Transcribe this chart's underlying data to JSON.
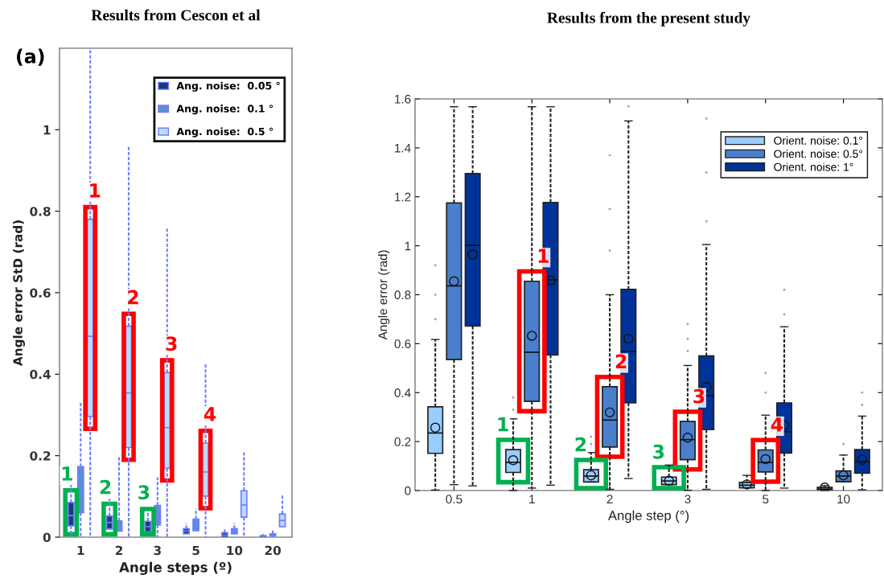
{
  "chart_data": [
    {
      "type": "box",
      "title": "Results from Cescon et al",
      "xlabel": "Angle steps (º)",
      "ylabel": "Angle error StD (rad)",
      "categories": [
        "1",
        "2",
        "3",
        "5",
        "10",
        "20"
      ],
      "ylim": [
        0,
        1.2
      ],
      "yticks": [
        0,
        0.2,
        0.4,
        0.6,
        0.8,
        1
      ],
      "legend": "top right",
      "series": [
        {
          "name": "Ang. noise:  0.05 °",
          "color": "#1b3a7a",
          "boxes": [
            {
              "low": 0,
              "q1": 0.028,
              "median": 0.053,
              "q3": 0.085,
              "high": 0.14
            },
            {
              "low": 0.02,
              "q1": 0.02,
              "median": 0.036,
              "q3": 0.052,
              "high": 0.094
            },
            {
              "low": 0.013,
              "q1": 0.013,
              "median": 0.026,
              "q3": 0.039,
              "high": 0.06
            },
            {
              "low": 0.008,
              "q1": 0.008,
              "median": 0.015,
              "q3": 0.021,
              "high": 0.035
            },
            {
              "low": 0,
              "q1": 0.001,
              "median": 0.005,
              "q3": 0.011,
              "high": 0.02
            },
            {
              "low": 0,
              "q1": 0.001,
              "median": 0.002,
              "q3": 0.004,
              "high": 0.008
            }
          ]
        },
        {
          "name": "Ang. noise:  0.1 °",
          "color": "#5b8fd0",
          "boxes": [
            {
              "low": 0,
              "q1": 0.06,
              "median": 0.11,
              "q3": 0.173,
              "high": 0.33
            },
            {
              "low": 0.015,
              "q1": 0.015,
              "median": 0.025,
              "q3": 0.04,
              "high": 0.2
            },
            {
              "low": 0,
              "q1": 0.03,
              "median": 0.05,
              "q3": 0.078,
              "high": 0.147
            },
            {
              "low": 0.016,
              "q1": 0.016,
              "median": 0.03,
              "q3": 0.044,
              "high": 0.07
            },
            {
              "low": 0.008,
              "q1": 0.008,
              "median": 0.015,
              "q3": 0.021,
              "high": 0.035
            },
            {
              "low": 0,
              "q1": 0.003,
              "median": 0.005,
              "q3": 0.008,
              "high": 0.02
            }
          ]
        },
        {
          "name": "Ang. noise:  0.5 °",
          "color": "#b8dcff",
          "boxes": [
            {
              "low": 0,
              "q1": 0.296,
              "median": 0.493,
              "q3": 0.78,
              "high": 1.2
            },
            {
              "low": 0,
              "q1": 0.22,
              "median": 0.354,
              "q3": 0.518,
              "high": 0.96
            },
            {
              "low": 0,
              "q1": 0.169,
              "median": 0.269,
              "q3": 0.404,
              "high": 0.76
            },
            {
              "low": 0,
              "q1": 0.101,
              "median": 0.16,
              "q3": 0.231,
              "high": 0.425
            },
            {
              "low": 0,
              "q1": 0.049,
              "median": 0.079,
              "q3": 0.114,
              "high": 0.208
            },
            {
              "low": 0.026,
              "q1": 0.026,
              "median": 0.041,
              "q3": 0.057,
              "high": 0.106
            }
          ]
        }
      ],
      "annotations": [
        "(a)",
        "1",
        "2",
        "3",
        "4",
        {
          "text": "1",
          "x": "1",
          "y": 0.085
        },
        {
          "text": "2",
          "x": "2",
          "y": 0.052
        },
        {
          "text": "3",
          "x": "3",
          "y": 0.039
        }
      ]
    },
    {
      "type": "box",
      "title": "Results from the present study",
      "xlabel": "Angle step (°)",
      "ylabel": "Angle error (rad)",
      "categories": [
        "0.5",
        "1",
        "2",
        "3",
        "5",
        "10"
      ],
      "ylim": [
        0,
        1.6
      ],
      "yticks": [
        0,
        0.2,
        0.4,
        0.6,
        0.8,
        1,
        1.2,
        1.4,
        1.6
      ],
      "legend": "top right",
      "series": [
        {
          "name": "Orient. noise: 0.1°",
          "color": "#99ccff",
          "boxes": [
            {
              "low": 0.002,
              "q1": 0.152,
              "median": 0.235,
              "q3": 0.342,
              "high": 0.617,
              "mean": 0.257,
              "outliers": [
                0.7,
                0.8,
                0.92
              ]
            },
            {
              "low": 0,
              "q1": 0.074,
              "median": 0.115,
              "q3": 0.167,
              "high": 0.293,
              "mean": 0.124,
              "outliers": [
                0.33,
                0.38
              ]
            },
            {
              "low": 0.035,
              "q1": 0.035,
              "median": 0.059,
              "q3": 0.085,
              "high": 0.155,
              "mean": 0.062,
              "outliers": [
                0.19,
                0.22
              ]
            },
            {
              "low": 0.024,
              "q1": 0.024,
              "median": 0.039,
              "q3": 0.055,
              "high": 0.104,
              "mean": 0.04
            },
            {
              "low": 0.011,
              "q1": 0.011,
              "median": 0.022,
              "q3": 0.033,
              "high": 0.062,
              "mean": 0.025
            },
            {
              "low": 0,
              "q1": 0,
              "median": 0.006,
              "q3": 0.013,
              "high": 0.02,
              "mean": 0.012
            }
          ]
        },
        {
          "name": "Orient. noise: 0.5°",
          "color": "#4a7fcc",
          "boxes": [
            {
              "low": 0.024,
              "q1": 0.535,
              "median": 0.836,
              "q3": 1.175,
              "high": 1.568,
              "mean": 0.855
            },
            {
              "low": 0.01,
              "q1": 0.364,
              "median": 0.565,
              "q3": 0.855,
              "high": 1.568,
              "mean": 0.632
            },
            {
              "low": 0.005,
              "q1": 0.178,
              "median": 0.288,
              "q3": 0.424,
              "high": 0.8,
              "mean": 0.319,
              "outliers": [
                0.98,
                1.15,
                1.37
              ]
            },
            {
              "low": 0.001,
              "q1": 0.126,
              "median": 0.208,
              "q3": 0.282,
              "high": 0.511,
              "mean": 0.216,
              "outliers": [
                0.57,
                0.62,
                0.68
              ]
            },
            {
              "low": 0,
              "q1": 0.076,
              "median": 0.115,
              "q3": 0.166,
              "high": 0.308,
              "mean": 0.128,
              "outliers": [
                0.4,
                0.48
              ]
            },
            {
              "low": 0.036,
              "q1": 0.036,
              "median": 0.059,
              "q3": 0.08,
              "high": 0.145,
              "mean": 0.062,
              "outliers": [
                0.19
              ]
            }
          ]
        },
        {
          "name": "Orient. noise: 1°",
          "color": "#003399",
          "boxes": [
            {
              "low": 0.019,
              "q1": 0.672,
              "median": 1.002,
              "q3": 1.295,
              "high": 1.568,
              "mean": 0.964
            },
            {
              "low": 0.022,
              "q1": 0.554,
              "median": 0.861,
              "q3": 1.177,
              "high": 1.568,
              "mean": 0.858
            },
            {
              "low": 0.049,
              "q1": 0.358,
              "median": 0.568,
              "q3": 0.822,
              "high": 1.51,
              "mean": 0.62,
              "outliers": [
                1.57
              ]
            },
            {
              "low": 0.005,
              "q1": 0.249,
              "median": 0.388,
              "q3": 0.55,
              "high": 1.005,
              "mean": 0.423,
              "outliers": [
                1.1,
                1.3,
                1.52
              ]
            },
            {
              "low": 0.01,
              "q1": 0.153,
              "median": 0.24,
              "q3": 0.358,
              "high": 0.669,
              "mean": 0.266,
              "outliers": [
                0.72,
                0.82
              ]
            },
            {
              "low": 0.003,
              "q1": 0.071,
              "median": 0.118,
              "q3": 0.167,
              "high": 0.304,
              "mean": 0.126,
              "outliers": [
                0.35,
                0.4
              ]
            }
          ]
        }
      ],
      "annotations": [
        {
          "text": "1",
          "x": "1",
          "y": 0.855
        },
        {
          "text": "2",
          "x": "2",
          "y": 0.424
        },
        {
          "text": "3",
          "x": "3",
          "y": 0.282
        },
        {
          "text": "4",
          "x": "5",
          "y": 0.166
        },
        {
          "text": "1",
          "x": "1",
          "y": 0.167
        },
        {
          "text": "2",
          "x": "2",
          "y": 0.085
        },
        {
          "text": "3",
          "x": "3",
          "y": 0.055
        }
      ]
    }
  ]
}
